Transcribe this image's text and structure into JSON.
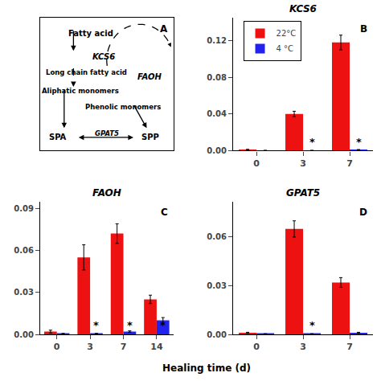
{
  "chart_data": [
    {
      "type": "diagram",
      "annotations": [
        "A",
        "Fatty acid",
        "KCS6",
        "Long chain fatty acid",
        "Aliphatic monomers",
        "Phenolic monomers",
        "FAOH",
        "SPA",
        "GPAT5",
        "SPP"
      ]
    },
    {
      "type": "bar",
      "title": "KCS6",
      "categories": [
        "0",
        "3",
        "7"
      ],
      "series": [
        {
          "name": "22°C",
          "color": "#ee1111",
          "values": [
            0.001,
            0.04,
            0.118
          ],
          "errors": [
            0.0005,
            0.003,
            0.008
          ]
        },
        {
          "name": "4 °C",
          "color": "#2222ee",
          "values": [
            0.0003,
            0.0003,
            0.001
          ],
          "errors": [
            0.0001,
            0.0001,
            0.0003
          ]
        }
      ],
      "ylim": [
        0,
        0.145
      ],
      "yticks": [
        {
          "value": 0,
          "label": "0.00"
        },
        0.04,
        0.08,
        0.12
      ],
      "grid": false,
      "legend": "upper left",
      "annotations": [
        {
          "text": "B"
        },
        {
          "text": "*",
          "category": "3",
          "series": "4 °C"
        },
        {
          "text": "*",
          "category": "7",
          "series": "4 °C"
        }
      ]
    },
    {
      "type": "bar",
      "title": "FAOH",
      "categories": [
        "0",
        "3",
        "7",
        "14"
      ],
      "series": [
        {
          "name": "22°C",
          "color": "#ee1111",
          "values": [
            0.002,
            0.055,
            0.072,
            0.025
          ],
          "errors": [
            0.001,
            0.009,
            0.007,
            0.003
          ]
        },
        {
          "name": "4 °C",
          "color": "#2222ee",
          "values": [
            0.0005,
            0.0005,
            0.002,
            0.01
          ],
          "errors": [
            0.0002,
            0.0002,
            0.0005,
            0.002
          ]
        }
      ],
      "ylim": [
        0,
        0.095
      ],
      "yticks": [
        {
          "value": 0,
          "label": "0.00"
        },
        0.03,
        0.06,
        0.09
      ],
      "grid": false,
      "xlabel": "Healing time (d)",
      "annotations": [
        {
          "text": "C"
        },
        {
          "text": "*",
          "category": "3",
          "series": "4 °C"
        },
        {
          "text": "*",
          "category": "7",
          "series": "4 °C"
        },
        {
          "text": "*",
          "category": "14",
          "series": "4 °C"
        }
      ]
    },
    {
      "type": "bar",
      "title": "GPAT5",
      "categories": [
        "0",
        "3",
        "7"
      ],
      "series": [
        {
          "name": "22°C",
          "color": "#ee1111",
          "values": [
            0.001,
            0.065,
            0.032
          ],
          "errors": [
            0.0003,
            0.005,
            0.003
          ]
        },
        {
          "name": "4 °C",
          "color": "#2222ee",
          "values": [
            0.0003,
            0.0003,
            0.001
          ],
          "errors": [
            0.0001,
            0.0001,
            0.0003
          ]
        }
      ],
      "ylim": [
        0,
        0.082
      ],
      "yticks": [
        {
          "value": 0,
          "label": "0.00"
        },
        0.03,
        0.06
      ],
      "grid": false,
      "annotations": [
        {
          "text": "D"
        },
        {
          "text": "*",
          "category": "3",
          "series": "4 °C"
        }
      ]
    }
  ]
}
